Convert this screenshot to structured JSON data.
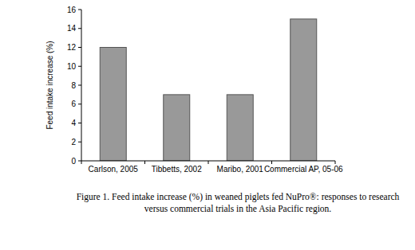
{
  "chart_data": {
    "type": "bar",
    "title": "Figure 1. Feed intake increase (%) in weaned piglets fed NuPro®: responses to research versus commercial trials in the Asia Pacific region.",
    "y_label": "Feed intake increase (%)",
    "categories": [
      "Carlson, 2005",
      "Tibbetts, 2002",
      "Maribo, 2001",
      "Commercial AP, 05-06"
    ],
    "values": [
      12,
      7,
      7,
      15
    ],
    "color": "#999999",
    "ylim": [
      0,
      16
    ],
    "yticks": [
      0,
      2,
      4,
      6,
      8,
      10,
      12,
      14,
      16
    ],
    "grid": false
  }
}
